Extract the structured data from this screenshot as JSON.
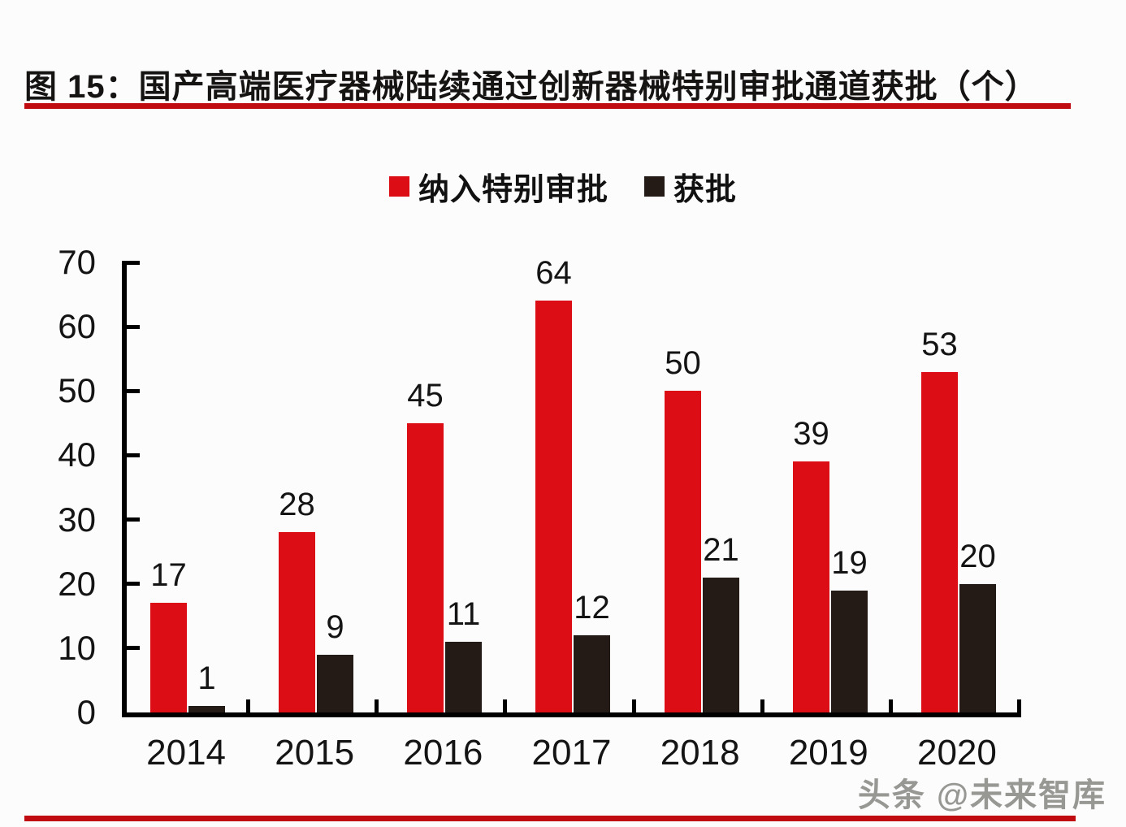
{
  "title": {
    "text": "图 15：国产高端医疗器械陆续通过创新器械特别审批通道获批（个）"
  },
  "colors": {
    "accent_line": "#c00b10",
    "series_included": "#dc0d15",
    "series_approved": "#241a16",
    "axis": "#000000"
  },
  "watermark": {
    "text": "头条 @未来智库"
  },
  "chart_data": {
    "type": "bar",
    "title": "国产高端医疗器械陆续通过创新器械特别审批通道获批（个）",
    "categories": [
      "2014",
      "2015",
      "2016",
      "2017",
      "2018",
      "2019",
      "2020"
    ],
    "series": [
      {
        "name": "纳入特别审批",
        "color": "#dc0d15",
        "values": [
          17,
          28,
          45,
          64,
          50,
          39,
          53
        ]
      },
      {
        "name": "获批",
        "color": "#241a16",
        "values": [
          1,
          9,
          11,
          12,
          21,
          19,
          20
        ]
      }
    ],
    "xlabel": "",
    "ylabel": "",
    "ylim": [
      0,
      70
    ],
    "yticks": [
      0,
      10,
      20,
      30,
      40,
      50,
      60,
      70
    ],
    "grid": false,
    "legend_position": "top",
    "value_labels": true
  }
}
